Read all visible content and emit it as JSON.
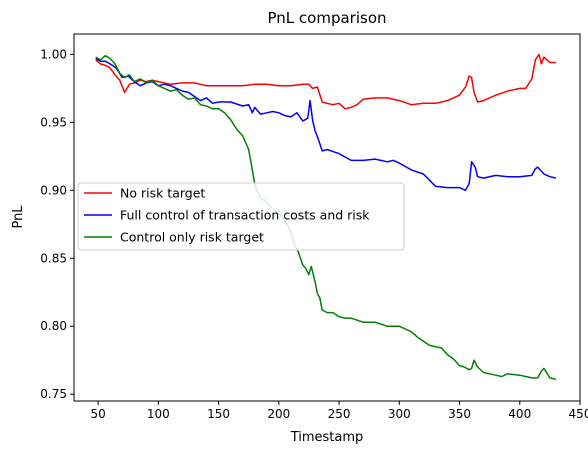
{
  "chart_data": {
    "type": "line",
    "title": "PnL comparison",
    "xlabel": "Timestamp",
    "ylabel": "PnL",
    "xlim": [
      30,
      450
    ],
    "ylim": [
      0.745,
      1.015
    ],
    "xticks": [
      50,
      100,
      150,
      200,
      250,
      300,
      350,
      400,
      450
    ],
    "yticks": [
      0.75,
      0.8,
      0.85,
      0.9,
      0.95,
      1.0
    ],
    "ytick_labels": [
      "0.75",
      "0.80",
      "0.85",
      "0.90",
      "0.95",
      "1.00"
    ],
    "grid": false,
    "legend_position": "center-left",
    "series": [
      {
        "name": "No risk target",
        "color": "#ff0000",
        "x": [
          48,
          52,
          56,
          60,
          64,
          68,
          72,
          76,
          80,
          85,
          90,
          95,
          100,
          110,
          120,
          130,
          140,
          150,
          160,
          170,
          180,
          190,
          200,
          210,
          220,
          225,
          228,
          232,
          236,
          240,
          245,
          250,
          255,
          260,
          265,
          270,
          280,
          290,
          300,
          310,
          320,
          330,
          340,
          350,
          355,
          358,
          360,
          362,
          365,
          370,
          380,
          390,
          400,
          405,
          410,
          413,
          416,
          418,
          420,
          425,
          430
        ],
        "y": [
          0.996,
          0.993,
          0.992,
          0.99,
          0.985,
          0.981,
          0.972,
          0.978,
          0.979,
          0.981,
          0.98,
          0.981,
          0.98,
          0.978,
          0.979,
          0.979,
          0.977,
          0.977,
          0.977,
          0.977,
          0.978,
          0.978,
          0.977,
          0.977,
          0.978,
          0.978,
          0.975,
          0.976,
          0.965,
          0.964,
          0.963,
          0.964,
          0.96,
          0.961,
          0.963,
          0.967,
          0.968,
          0.968,
          0.966,
          0.963,
          0.964,
          0.964,
          0.966,
          0.97,
          0.976,
          0.984,
          0.983,
          0.972,
          0.965,
          0.966,
          0.97,
          0.973,
          0.975,
          0.975,
          0.982,
          0.996,
          1.0,
          0.993,
          0.998,
          0.994,
          0.994
        ]
      },
      {
        "name": "Full control of transaction costs and risk",
        "color": "#0000ff",
        "x": [
          48,
          52,
          56,
          60,
          65,
          70,
          75,
          80,
          85,
          90,
          95,
          100,
          105,
          110,
          115,
          120,
          125,
          130,
          135,
          140,
          145,
          150,
          160,
          170,
          175,
          178,
          180,
          185,
          190,
          195,
          200,
          205,
          210,
          215,
          220,
          224,
          226,
          228,
          230,
          233,
          236,
          240,
          250,
          260,
          270,
          280,
          290,
          295,
          300,
          310,
          320,
          330,
          340,
          350,
          355,
          358,
          360,
          363,
          365,
          370,
          380,
          390,
          400,
          410,
          413,
          415,
          420,
          425,
          430
        ],
        "y": [
          0.997,
          0.995,
          0.995,
          0.993,
          0.99,
          0.983,
          0.984,
          0.98,
          0.977,
          0.979,
          0.98,
          0.977,
          0.978,
          0.977,
          0.975,
          0.973,
          0.972,
          0.969,
          0.966,
          0.968,
          0.964,
          0.965,
          0.965,
          0.962,
          0.963,
          0.957,
          0.961,
          0.956,
          0.957,
          0.958,
          0.957,
          0.955,
          0.954,
          0.957,
          0.951,
          0.953,
          0.966,
          0.952,
          0.944,
          0.937,
          0.929,
          0.93,
          0.927,
          0.922,
          0.922,
          0.923,
          0.921,
          0.922,
          0.92,
          0.915,
          0.912,
          0.903,
          0.902,
          0.902,
          0.9,
          0.905,
          0.921,
          0.917,
          0.91,
          0.909,
          0.911,
          0.91,
          0.91,
          0.911,
          0.916,
          0.917,
          0.912,
          0.91,
          0.909
        ]
      },
      {
        "name": "Control only risk target",
        "color": "#008000",
        "x": [
          48,
          52,
          56,
          60,
          64,
          68,
          72,
          76,
          80,
          85,
          90,
          95,
          100,
          105,
          110,
          115,
          120,
          125,
          130,
          135,
          140,
          145,
          150,
          155,
          160,
          165,
          170,
          175,
          180,
          183,
          186,
          188,
          190,
          193,
          196,
          200,
          205,
          210,
          213,
          216,
          220,
          222,
          225,
          227,
          230,
          232,
          234,
          236,
          240,
          245,
          250,
          255,
          260,
          270,
          280,
          290,
          300,
          305,
          310,
          315,
          320,
          325,
          330,
          335,
          340,
          345,
          350,
          354,
          358,
          360,
          362,
          365,
          370,
          375,
          380,
          385,
          390,
          400,
          410,
          415,
          418,
          420,
          425,
          430
        ],
        "y": [
          0.998,
          0.996,
          0.999,
          0.997,
          0.993,
          0.986,
          0.983,
          0.985,
          0.98,
          0.982,
          0.979,
          0.981,
          0.977,
          0.975,
          0.973,
          0.974,
          0.97,
          0.967,
          0.968,
          0.963,
          0.962,
          0.96,
          0.96,
          0.957,
          0.952,
          0.945,
          0.94,
          0.93,
          0.905,
          0.897,
          0.893,
          0.893,
          0.891,
          0.888,
          0.886,
          0.883,
          0.878,
          0.87,
          0.86,
          0.855,
          0.845,
          0.843,
          0.838,
          0.844,
          0.833,
          0.824,
          0.821,
          0.812,
          0.81,
          0.81,
          0.807,
          0.806,
          0.806,
          0.803,
          0.803,
          0.8,
          0.8,
          0.798,
          0.796,
          0.792,
          0.789,
          0.786,
          0.785,
          0.784,
          0.779,
          0.776,
          0.771,
          0.77,
          0.768,
          0.769,
          0.775,
          0.77,
          0.766,
          0.765,
          0.764,
          0.763,
          0.765,
          0.764,
          0.762,
          0.762,
          0.767,
          0.769,
          0.762,
          0.761
        ]
      }
    ]
  }
}
